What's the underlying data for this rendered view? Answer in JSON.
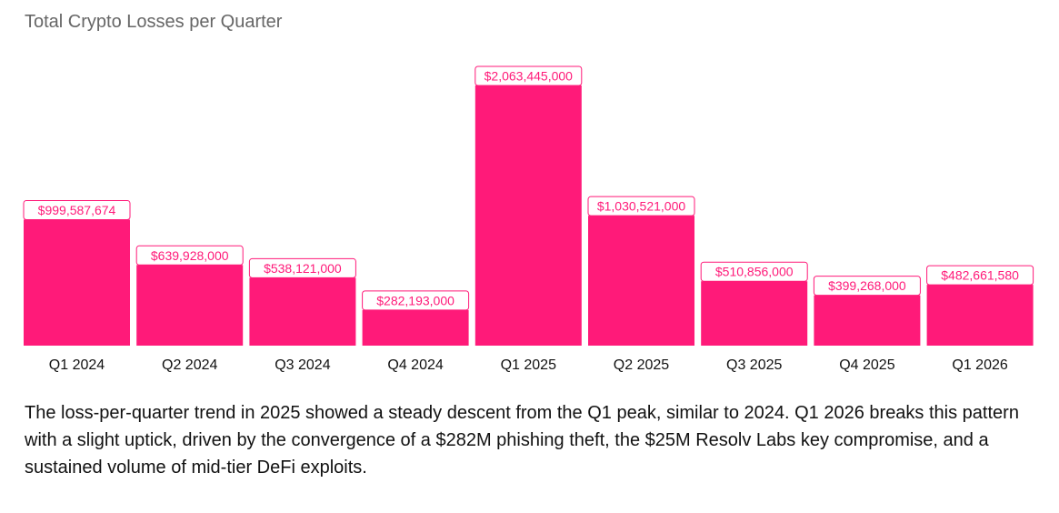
{
  "chart_data": {
    "type": "bar",
    "title": "Total Crypto Losses per Quarter",
    "xlabel": "",
    "ylabel": "",
    "ylim": [
      0,
      2063445000
    ],
    "grid": false,
    "categories": [
      "Q1 2024",
      "Q2 2024",
      "Q3 2024",
      "Q4 2024",
      "Q1 2025",
      "Q2 2025",
      "Q3 2025",
      "Q4 2025",
      "Q1 2026"
    ],
    "values": [
      999587674,
      639928000,
      538121000,
      282193000,
      2063445000,
      1030521000,
      510856000,
      399268000,
      482661580
    ],
    "labels": [
      "$999,587,674",
      "$639,928,000",
      "$538,121,000",
      "$282,193,000",
      "$2,063,445,000",
      "$1,030,521,000",
      "$510,856,000",
      "$399,268,000",
      "$482,661,580"
    ]
  },
  "description": "The loss-per-quarter trend in 2025 showed a steady descent from the Q1 peak, similar to 2024. Q1 2026 breaks this pattern with a slight uptick, driven by the convergence of a $282M phishing theft, the $25M Resolv Labs key compromise, and a sustained volume of mid-tier DeFi exploits.",
  "colors": {
    "bar": "#ff1a79",
    "title": "#666666",
    "text": "#111111",
    "background": "#ffffff"
  }
}
